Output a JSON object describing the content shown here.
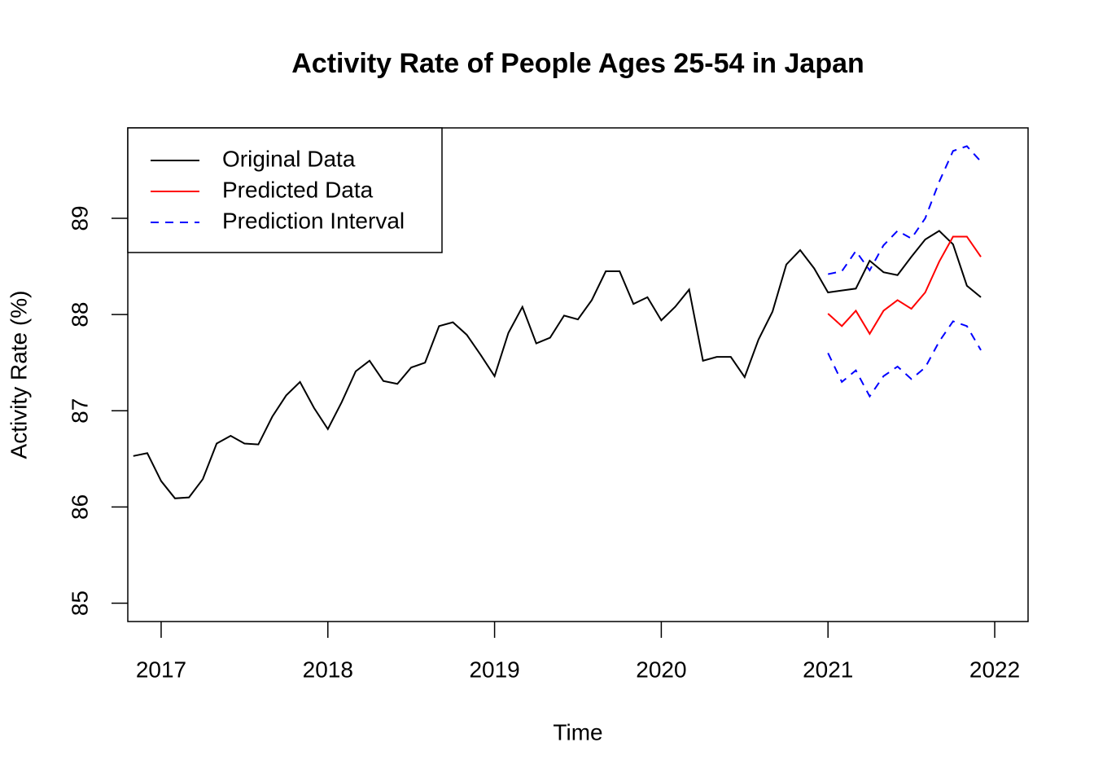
{
  "chart_data": {
    "type": "line",
    "title": "Activity Rate of People Ages 25-54 in Japan",
    "x_label": "Time",
    "y_label": "Activity Rate (%)",
    "xlim": [
      2016.8,
      2022.2
    ],
    "ylim": [
      84.81,
      89.94
    ],
    "xticks": [
      2017,
      2018,
      2019,
      2020,
      2021,
      2022
    ],
    "yticks": [
      85,
      86,
      87,
      88,
      89
    ],
    "legend_position": "top-left",
    "series": [
      {
        "name": "Original Data",
        "color": "#000000",
        "dash": "solid",
        "x": [
          2016.833,
          2016.917,
          2017,
          2017.083,
          2017.167,
          2017.25,
          2017.333,
          2017.417,
          2017.5,
          2017.583,
          2017.667,
          2017.75,
          2017.833,
          2017.917,
          2018,
          2018.083,
          2018.167,
          2018.25,
          2018.333,
          2018.417,
          2018.5,
          2018.583,
          2018.667,
          2018.75,
          2018.833,
          2018.917,
          2019,
          2019.083,
          2019.167,
          2019.25,
          2019.333,
          2019.417,
          2019.5,
          2019.583,
          2019.667,
          2019.75,
          2019.833,
          2019.917,
          2020,
          2020.083,
          2020.167,
          2020.25,
          2020.333,
          2020.417,
          2020.5,
          2020.583,
          2020.667,
          2020.75,
          2020.833,
          2020.917,
          2021,
          2021.083,
          2021.167,
          2021.25,
          2021.333,
          2021.417,
          2021.5,
          2021.583,
          2021.667,
          2021.75,
          2021.833,
          2021.917
        ],
        "values": [
          86.53,
          86.56,
          86.27,
          86.09,
          86.1,
          86.29,
          86.66,
          86.74,
          86.66,
          86.65,
          86.94,
          87.16,
          87.3,
          87.03,
          86.81,
          87.09,
          87.41,
          87.52,
          87.31,
          87.28,
          87.45,
          87.5,
          87.88,
          87.92,
          87.79,
          87.58,
          87.36,
          87.81,
          88.08,
          87.7,
          87.76,
          87.99,
          87.95,
          88.15,
          88.45,
          88.45,
          88.11,
          88.18,
          87.94,
          88.08,
          88.26,
          87.52,
          87.56,
          87.56,
          87.35,
          87.74,
          88.03,
          88.52,
          88.67,
          88.48,
          88.23,
          88.25,
          88.27,
          88.56,
          88.44,
          88.41,
          88.6,
          88.78,
          88.87,
          88.73,
          88.3,
          88.18
        ]
      },
      {
        "name": "Predicted Data",
        "color": "#ff0000",
        "dash": "solid",
        "x": [
          2021,
          2021.083,
          2021.167,
          2021.25,
          2021.333,
          2021.417,
          2021.5,
          2021.583,
          2021.667,
          2021.75,
          2021.833,
          2021.917
        ],
        "values": [
          88.01,
          87.88,
          88.04,
          87.8,
          88.04,
          88.15,
          88.06,
          88.23,
          88.55,
          88.81,
          88.81,
          88.6
        ]
      },
      {
        "name": "Prediction Interval",
        "color": "#0000ff",
        "dash": "dashed",
        "x": [
          2021,
          2021.083,
          2021.167,
          2021.25,
          2021.333,
          2021.417,
          2021.5,
          2021.583,
          2021.667,
          2021.75,
          2021.833,
          2021.917
        ],
        "values": [
          88.42,
          88.45,
          88.66,
          88.46,
          88.72,
          88.87,
          88.79,
          89.0,
          89.38,
          89.7,
          89.75,
          89.59
        ]
      },
      {
        "color": "#0000ff",
        "dash": "dashed",
        "x": [
          2021,
          2021.083,
          2021.167,
          2021.25,
          2021.333,
          2021.417,
          2021.5,
          2021.583,
          2021.667,
          2021.75,
          2021.833,
          2021.917
        ],
        "values": [
          87.6,
          87.3,
          87.42,
          87.15,
          87.36,
          87.46,
          87.33,
          87.45,
          87.72,
          87.93,
          87.88,
          87.63
        ]
      }
    ]
  }
}
